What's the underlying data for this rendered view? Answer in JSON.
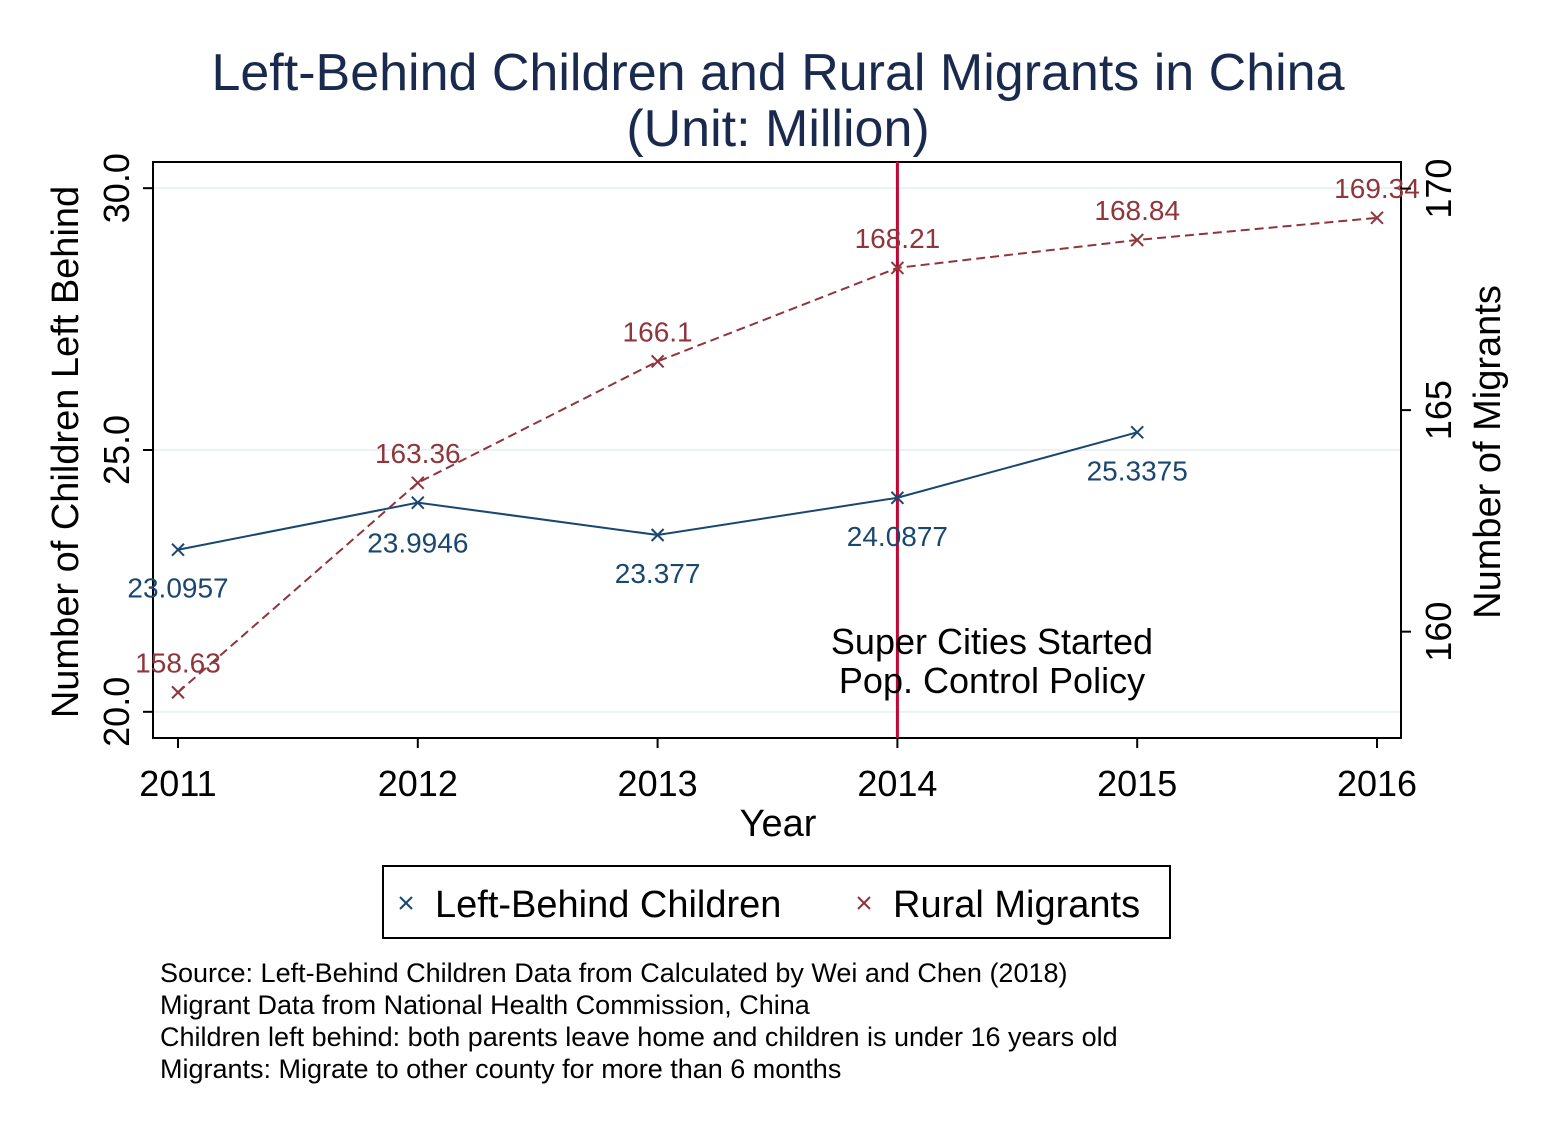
{
  "chart_data": {
    "type": "line",
    "title": "Left-Behind Children and Rural Migrants in China",
    "subtitle": "(Unit: Million)",
    "xlabel": "Year",
    "ylabel_left": "Number of Children Left Behind",
    "ylabel_right": "Number of Migrants",
    "x_ticks": [
      "2011",
      "2012",
      "2013",
      "2014",
      "2015",
      "2016"
    ],
    "x_range": [
      2011,
      2016
    ],
    "y_left_ticks": [
      "20.0",
      "25.0",
      "30.0"
    ],
    "y_left_range": [
      19.5,
      30.5
    ],
    "y_right_ticks": [
      "160",
      "165",
      "170"
    ],
    "y_right_range": [
      157.6,
      170.6
    ],
    "grid": true,
    "legend_placement": "bottom",
    "series": [
      {
        "name": "Left-Behind Children",
        "axis": "left",
        "color": "#1a476f",
        "line_style": "solid",
        "marker": "x",
        "x": [
          2011,
          2012,
          2013,
          2014,
          2015
        ],
        "values": [
          23.0957,
          23.9946,
          23.377,
          24.0877,
          25.3375
        ],
        "labels": [
          "23.0957",
          "23.9946",
          "23.377",
          "24.0877",
          "25.3375"
        ]
      },
      {
        "name": "Rural Migrants",
        "axis": "right",
        "color": "#90353b",
        "line_style": "dashed",
        "marker": "x",
        "x": [
          2011,
          2012,
          2013,
          2014,
          2015,
          2016
        ],
        "values": [
          158.63,
          163.36,
          166.1,
          168.21,
          168.84,
          169.34
        ],
        "labels": [
          "158.63",
          "163.36",
          "166.1",
          "168.21",
          "168.84",
          "169.34"
        ]
      }
    ],
    "reference_line": {
      "x": 2014,
      "color": "#c10534",
      "label_lines": [
        "Super Cities Started",
        "Pop. Control Policy"
      ]
    },
    "notes": [
      "Source: Left-Behind Children Data from Calculated by Wei and Chen (2018)",
      "Migrant Data from National Health Commission, China",
      "Children left behind: both parents leave home and children is under 16 years old",
      "Migrants: Migrate to other county for more than 6 months"
    ]
  }
}
